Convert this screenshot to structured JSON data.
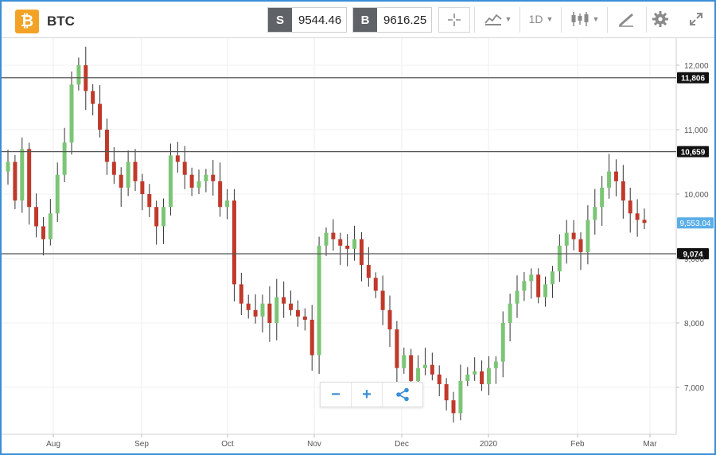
{
  "instrument": {
    "symbol": "BTC",
    "logo_glyph": "₿"
  },
  "toolbar": {
    "sell_tag": "S",
    "sell_price": "9544.46",
    "buy_tag": "B",
    "buy_price": "9616.25",
    "timeframe": "1D",
    "icons": [
      "crosshair-icon",
      "chart-type-icon",
      "candlestick-icon",
      "drawing-tools-icon",
      "settings-icon",
      "fullscreen-icon"
    ]
  },
  "zoom_controls": {
    "zoom_out": "−",
    "zoom_in": "+",
    "share": "share-icon"
  },
  "colors": {
    "up": "#7cc576",
    "down": "#c0392b",
    "border": "#3a8fd6",
    "current_price_bg": "#5aaee8"
  },
  "chart_data": {
    "type": "candlestick",
    "x_ticks": [
      "Aug",
      "Sep",
      "Oct",
      "Nov",
      "Dec",
      "2020",
      "Feb",
      "Mar"
    ],
    "y_ticks": [
      "12,000",
      "11,000",
      "10,000",
      "9,000",
      "8,000",
      "7,000"
    ],
    "y_range": [
      6300,
      12500
    ],
    "horizontal_lines": [
      {
        "value": 11806,
        "label": "11,806"
      },
      {
        "value": 10659,
        "label": "10,659"
      },
      {
        "value": 9074,
        "label": "9,074"
      }
    ],
    "current_price": {
      "value": 9553.04,
      "label": "9,553.04"
    },
    "closes": [
      10500,
      9900,
      10700,
      9800,
      9500,
      9300,
      9700,
      10300,
      10800,
      11700,
      12000,
      11600,
      11400,
      11000,
      10500,
      10300,
      10100,
      10500,
      10200,
      10000,
      9800,
      9500,
      9800,
      10600,
      10500,
      10300,
      10100,
      10200,
      10300,
      10200,
      9800,
      9900,
      8600,
      8300,
      8200,
      8100,
      8300,
      8000,
      8400,
      8300,
      8200,
      8100,
      8050,
      7500,
      9200,
      9400,
      9300,
      9200,
      9150,
      9300,
      8900,
      8700,
      8500,
      8200,
      7900,
      7300,
      7500,
      7100,
      7300,
      7350,
      7200,
      7050,
      6800,
      6600,
      7100,
      7200,
      7250,
      7050,
      7300,
      7400,
      8000,
      8300,
      8500,
      8650,
      8750,
      8400,
      8600,
      8800,
      9200,
      9400,
      9300,
      9100,
      9600,
      9800,
      10100,
      10350,
      10200,
      9900,
      9700,
      9600,
      9553
    ]
  }
}
